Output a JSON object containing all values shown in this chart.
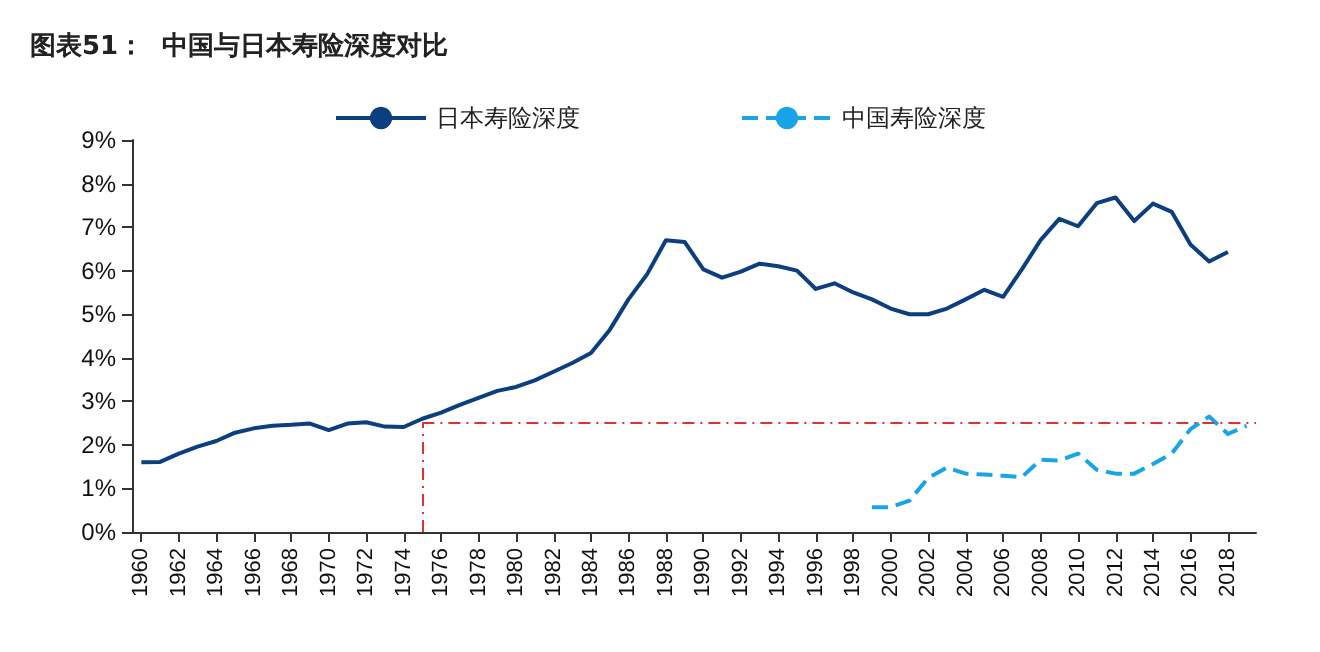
{
  "chart_data": {
    "type": "line",
    "title": "图表51：  中国与日本寿险深度对比",
    "x": [
      1960,
      1961,
      1962,
      1963,
      1964,
      1965,
      1966,
      1967,
      1968,
      1969,
      1970,
      1971,
      1972,
      1973,
      1974,
      1975,
      1976,
      1977,
      1978,
      1979,
      1980,
      1981,
      1982,
      1983,
      1984,
      1985,
      1986,
      1987,
      1988,
      1989,
      1990,
      1991,
      1992,
      1993,
      1994,
      1995,
      1996,
      1997,
      1998,
      1999,
      2000,
      2001,
      2002,
      2003,
      2004,
      2005,
      2006,
      2007,
      2008,
      2009,
      2010,
      2011,
      2012,
      2013,
      2014,
      2015,
      2016,
      2017,
      2018
    ],
    "series": [
      {
        "name": "日本寿险深度",
        "color": "#0c3f7f",
        "line_style": "solid",
        "values": [
          1.6,
          1.61,
          1.8,
          1.96,
          2.09,
          2.28,
          2.38,
          2.44,
          2.46,
          2.49,
          2.34,
          2.49,
          2.52,
          2.42,
          2.41,
          2.6,
          2.74,
          2.92,
          3.08,
          3.24,
          3.33,
          3.48,
          3.68,
          3.88,
          4.11,
          4.64,
          5.34,
          5.92,
          6.7,
          6.66,
          6.03,
          5.84,
          5.98,
          6.16,
          6.1,
          6.0,
          5.58,
          5.71,
          5.5,
          5.34,
          5.13,
          5.0,
          5.0,
          5.13,
          5.34,
          5.56,
          5.4,
          6.03,
          6.7,
          7.19,
          7.02,
          7.55,
          7.68,
          7.14,
          7.54,
          7.35,
          6.6,
          6.21,
          6.43
        ]
      },
      {
        "name": "中国寿险深度",
        "color": "#19a4e8",
        "line_style": "dashed",
        "x": [
          1999,
          2000,
          2001,
          2002,
          2003,
          2004,
          2005,
          2006,
          2007,
          2008,
          2009,
          2010,
          2011,
          2012,
          2013,
          2014,
          2015,
          2016,
          2017,
          2018,
          2019
        ],
        "values": [
          0.57,
          0.57,
          0.72,
          1.24,
          1.48,
          1.34,
          1.32,
          1.29,
          1.26,
          1.66,
          1.64,
          1.8,
          1.43,
          1.34,
          1.34,
          1.56,
          1.8,
          2.36,
          2.65,
          2.25,
          2.44
        ]
      }
    ],
    "xlim": [
      1959.5,
      2019.5
    ],
    "xticks": [
      1960,
      1962,
      1964,
      1966,
      1968,
      1970,
      1972,
      1974,
      1976,
      1978,
      1980,
      1982,
      1984,
      1986,
      1988,
      1990,
      1992,
      1994,
      1996,
      1998,
      2000,
      2002,
      2004,
      2006,
      2008,
      2010,
      2012,
      2014,
      2016,
      2018
    ],
    "ylim": [
      0,
      9
    ],
    "yticks": [
      {
        "value": 0,
        "label": "0%"
      },
      {
        "value": 1,
        "label": "1%"
      },
      {
        "value": 2,
        "label": "2%"
      },
      {
        "value": 3,
        "label": "3%"
      },
      {
        "value": 4,
        "label": "4%"
      },
      {
        "value": 5,
        "label": "5%"
      },
      {
        "value": 6,
        "label": "6%"
      },
      {
        "value": 7,
        "label": "7%"
      },
      {
        "value": 8,
        "label": "8%"
      },
      {
        "value": 9,
        "label": "9%"
      }
    ],
    "ref_lines": [
      {
        "axis": "x",
        "value": 1975,
        "color": "#e03030",
        "line_style": "dashed"
      },
      {
        "axis": "y",
        "value": 2.5,
        "color": "#e03030",
        "line_style": "dashed"
      }
    ],
    "grid": false,
    "legend": "top",
    "marker": "none"
  }
}
